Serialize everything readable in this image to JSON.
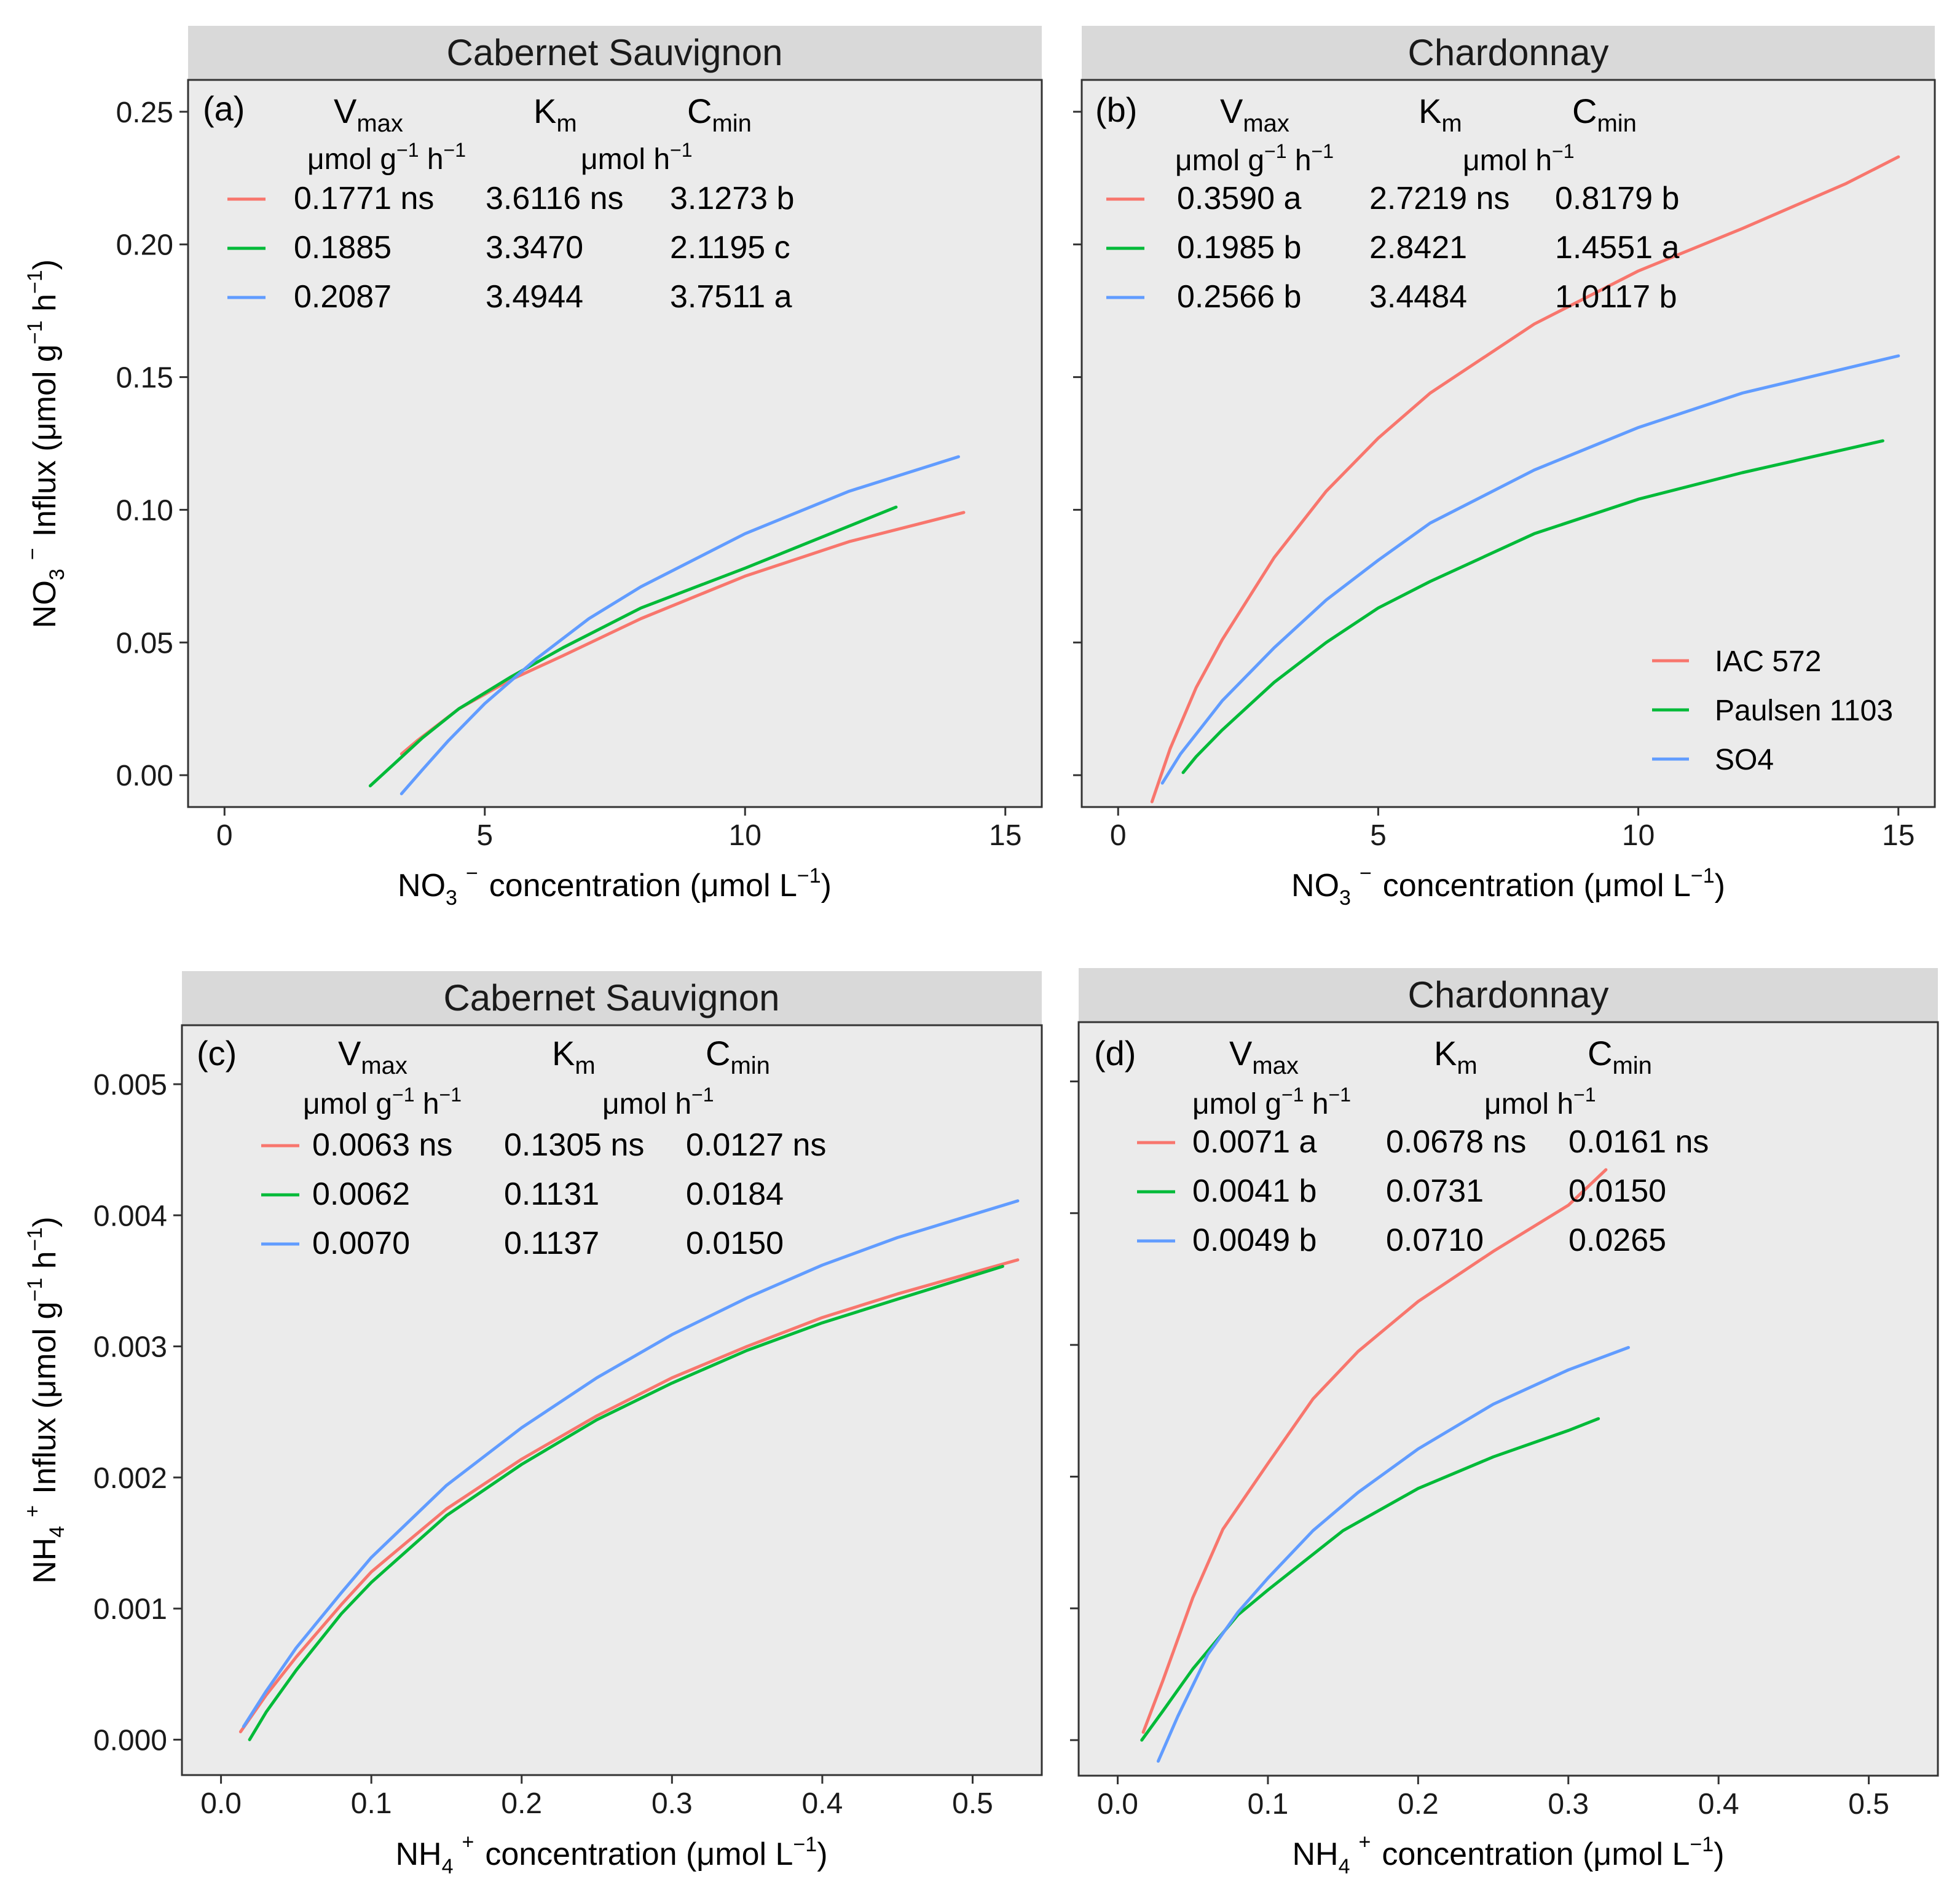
{
  "colors": {
    "IAC 572": "#F8766D",
    "Paulsen 1103": "#00BA38",
    "SO4": "#619CFF",
    "panel_bg": "#EBEBEB",
    "strip_bg": "#D9D9D9"
  },
  "legend": {
    "position": "bottom-right of panel (b)",
    "entries": [
      "IAC 572",
      "Paulsen 1103",
      "SO4"
    ]
  },
  "table_headers": {
    "vmax_main": "V",
    "vmax_sub": "max",
    "km_main": "K",
    "km_sub": "m",
    "cmin_main": "C",
    "cmin_sub": "min",
    "unit1_a": "μmol g",
    "unit1_sup1": "−1",
    "unit1_b": " h",
    "unit1_sup2": "−1",
    "unit2_a": "μmol h",
    "unit2_sup": "−1"
  },
  "axis_labels": {
    "no3_y_a": "NO",
    "no3_y_sub": "3",
    "no3_y_sup": "−",
    "no3_y_b": "Influx (μmol g",
    "no3_y_sup2": "−1",
    "no3_y_c": " h",
    "no3_y_sup3": "−1",
    "no3_y_d": ")",
    "no3_x_a": "NO",
    "no3_x_sub": "3",
    "no3_x_sup": "−",
    "no3_x_b": "concentration (μmol L",
    "no3_x_sup2": "−1",
    "no3_x_c": ")",
    "nh4_y_a": "NH",
    "nh4_y_sub": "4",
    "nh4_y_sup": "+",
    "nh4_y_b": "Influx (μmol g",
    "nh4_y_sup2": "−1",
    "nh4_y_c": " h",
    "nh4_y_sup3": "−1",
    "nh4_y_d": ")",
    "nh4_x_a": "NH",
    "nh4_x_sub": "4",
    "nh4_x_sup": "+",
    "nh4_x_b": "concentration (μmol L",
    "nh4_x_sup2": "−1",
    "nh4_x_c": ")"
  },
  "chart_data": [
    {
      "type": "line",
      "panel": "(a)",
      "title": "Cabernet Sauvignon",
      "xlim": [
        -0.7,
        15.7
      ],
      "ylim": [
        -0.012,
        0.262
      ],
      "x_ticks": [
        0,
        5,
        10,
        15
      ],
      "y_ticks": [
        0.0,
        0.05,
        0.1,
        0.15,
        0.2,
        0.25
      ],
      "y_tick_labels": [
        "0.00",
        "0.05",
        "0.10",
        "0.15",
        "0.20",
        "0.25"
      ],
      "x_tick_labels": [
        "0",
        "5",
        "10",
        "15"
      ],
      "grid": false,
      "table": [
        {
          "series": "IAC 572",
          "vmax": "0.1771 ns",
          "km": "3.6116 ns",
          "cmin": "3.1273 b"
        },
        {
          "series": "Paulsen 1103",
          "vmax": "0.1885",
          "km": "3.3470",
          "cmin": "2.1195 c"
        },
        {
          "series": "SO4",
          "vmax": "0.2087",
          "km": "3.4944",
          "cmin": "3.7511 a"
        }
      ],
      "series": [
        {
          "name": "IAC 572",
          "x": [
            3.4,
            3.7,
            4.5,
            5.5,
            6.5,
            8,
            10,
            12,
            14.2
          ],
          "y": [
            0.008,
            0.013,
            0.025,
            0.036,
            0.045,
            0.059,
            0.075,
            0.088,
            0.099
          ]
        },
        {
          "name": "Paulsen 1103",
          "x": [
            2.8,
            3.3,
            3.8,
            4.5,
            5.5,
            6.5,
            8,
            10,
            12.9
          ],
          "y": [
            -0.004,
            0.005,
            0.014,
            0.025,
            0.037,
            0.048,
            0.063,
            0.078,
            0.101
          ]
        },
        {
          "name": "SO4",
          "x": [
            3.4,
            3.8,
            4.3,
            5,
            6,
            7,
            8,
            10,
            12,
            14.1
          ],
          "y": [
            -0.007,
            0.002,
            0.013,
            0.027,
            0.044,
            0.059,
            0.071,
            0.091,
            0.107,
            0.12
          ]
        }
      ]
    },
    {
      "type": "line",
      "panel": "(b)",
      "title": "Chardonnay",
      "xlim": [
        -0.7,
        15.7
      ],
      "ylim": [
        -0.012,
        0.262
      ],
      "x_ticks": [
        0,
        5,
        10,
        15
      ],
      "y_ticks": [
        0.0,
        0.05,
        0.1,
        0.15,
        0.2,
        0.25
      ],
      "x_tick_labels": [
        "0",
        "5",
        "10",
        "15"
      ],
      "grid": false,
      "table": [
        {
          "series": "IAC 572",
          "vmax": "0.3590 a",
          "km": "2.7219 ns",
          "cmin": "0.8179 b"
        },
        {
          "series": "Paulsen 1103",
          "vmax": "0.1985 b",
          "km": "2.8421",
          "cmin": "1.4551 a"
        },
        {
          "series": "SO4",
          "vmax": "0.2566 b",
          "km": "3.4484",
          "cmin": "1.0117 b"
        }
      ],
      "series": [
        {
          "name": "IAC 572",
          "x": [
            0.65,
            1,
            1.5,
            2,
            3,
            4,
            5,
            6,
            8,
            10,
            12,
            14,
            15
          ],
          "y": [
            -0.01,
            0.01,
            0.033,
            0.051,
            0.082,
            0.107,
            0.127,
            0.144,
            0.17,
            0.19,
            0.206,
            0.223,
            0.233
          ]
        },
        {
          "name": "Paulsen 1103",
          "x": [
            1.25,
            1.5,
            2,
            3,
            4,
            5,
            6,
            8,
            10,
            12,
            14.7
          ],
          "y": [
            0.001,
            0.007,
            0.017,
            0.035,
            0.05,
            0.063,
            0.073,
            0.091,
            0.104,
            0.114,
            0.126
          ]
        },
        {
          "name": "SO4",
          "x": [
            0.85,
            1.2,
            1.6,
            2,
            3,
            4,
            5,
            6,
            8,
            10,
            12,
            15
          ],
          "y": [
            -0.003,
            0.008,
            0.018,
            0.028,
            0.048,
            0.066,
            0.081,
            0.095,
            0.115,
            0.131,
            0.144,
            0.158
          ]
        }
      ]
    },
    {
      "type": "line",
      "panel": "(c)",
      "title": "Cabernet Sauvignon",
      "xlim": [
        -0.026,
        0.546
      ],
      "ylim": [
        -0.00027,
        0.00545
      ],
      "x_ticks": [
        0.0,
        0.1,
        0.2,
        0.3,
        0.4,
        0.5
      ],
      "x_tick_labels": [
        "0.0",
        "0.1",
        "0.2",
        "0.3",
        "0.4",
        "0.5"
      ],
      "y_ticks": [
        0.0,
        0.001,
        0.002,
        0.003,
        0.004,
        0.005
      ],
      "y_tick_labels": [
        "0.000",
        "0.001",
        "0.002",
        "0.003",
        "0.004",
        "0.005"
      ],
      "grid": false,
      "table": [
        {
          "series": "IAC 572",
          "vmax": "0.0063 ns",
          "km": "0.1305 ns",
          "cmin": "0.0127 ns"
        },
        {
          "series": "Paulsen 1103",
          "vmax": "0.0062",
          "km": "0.1131",
          "cmin": "0.0184"
        },
        {
          "series": "SO4",
          "vmax": "0.0070",
          "km": "0.1137",
          "cmin": "0.0150"
        }
      ],
      "series": [
        {
          "name": "IAC 572",
          "x": [
            0.013,
            0.03,
            0.05,
            0.08,
            0.1,
            0.15,
            0.2,
            0.25,
            0.3,
            0.35,
            0.4,
            0.45,
            0.53
          ],
          "y": [
            6e-05,
            0.00034,
            0.00063,
            0.00103,
            0.00128,
            0.00176,
            0.00214,
            0.00247,
            0.00276,
            0.003,
            0.00322,
            0.0034,
            0.00366
          ]
        },
        {
          "name": "Paulsen 1103",
          "x": [
            0.019,
            0.03,
            0.05,
            0.08,
            0.1,
            0.15,
            0.2,
            0.25,
            0.3,
            0.35,
            0.4,
            0.45,
            0.52
          ],
          "y": [
            0.0,
            0.00021,
            0.00053,
            0.00096,
            0.0012,
            0.00171,
            0.0021,
            0.00244,
            0.00272,
            0.00297,
            0.00318,
            0.00336,
            0.00361
          ]
        },
        {
          "name": "SO4",
          "x": [
            0.015,
            0.03,
            0.05,
            0.08,
            0.1,
            0.15,
            0.2,
            0.25,
            0.3,
            0.35,
            0.4,
            0.45,
            0.53
          ],
          "y": [
            0.0001,
            0.00037,
            0.0007,
            0.00112,
            0.00139,
            0.00194,
            0.00238,
            0.00276,
            0.00309,
            0.00337,
            0.00362,
            0.00383,
            0.00411
          ]
        }
      ]
    },
    {
      "type": "line",
      "panel": "(d)",
      "title": "Chardonnay",
      "xlim": [
        -0.026,
        0.546
      ],
      "ylim": [
        -0.00027,
        0.00545
      ],
      "x_ticks": [
        0.0,
        0.1,
        0.2,
        0.3,
        0.4,
        0.5
      ],
      "x_tick_labels": [
        "0.0",
        "0.1",
        "0.2",
        "0.3",
        "0.4",
        "0.5"
      ],
      "y_ticks": [
        0.0,
        0.001,
        0.002,
        0.003,
        0.004,
        0.005
      ],
      "grid": false,
      "table": [
        {
          "series": "IAC 572",
          "vmax": "0.0071 a",
          "km": "0.0678 ns",
          "cmin": "0.0161 ns"
        },
        {
          "series": "Paulsen 1103",
          "vmax": "0.0041 b",
          "km": "0.0731",
          "cmin": "0.0150"
        },
        {
          "series": "SO4",
          "vmax": "0.0049 b",
          "km": "0.0710",
          "cmin": "0.0265"
        }
      ],
      "series": [
        {
          "name": "IAC 572",
          "x": [
            0.017,
            0.03,
            0.05,
            0.07,
            0.1,
            0.13,
            0.16,
            0.2,
            0.25,
            0.3,
            0.325
          ],
          "y": [
            6e-05,
            0.00045,
            0.00108,
            0.0016,
            0.0021,
            0.00259,
            0.00295,
            0.00333,
            0.00371,
            0.00406,
            0.00433
          ]
        },
        {
          "name": "Paulsen 1103",
          "x": [
            0.016,
            0.03,
            0.05,
            0.08,
            0.1,
            0.15,
            0.2,
            0.25,
            0.3,
            0.32
          ],
          "y": [
            0.0,
            0.00022,
            0.00054,
            0.00095,
            0.00114,
            0.00159,
            0.00191,
            0.00215,
            0.00235,
            0.00244
          ]
        },
        {
          "name": "SO4",
          "x": [
            0.027,
            0.04,
            0.06,
            0.08,
            0.1,
            0.13,
            0.16,
            0.2,
            0.25,
            0.3,
            0.34
          ],
          "y": [
            -0.00016,
            0.00018,
            0.00065,
            0.00097,
            0.00123,
            0.00159,
            0.00188,
            0.00221,
            0.00255,
            0.00281,
            0.00298
          ]
        }
      ]
    }
  ]
}
